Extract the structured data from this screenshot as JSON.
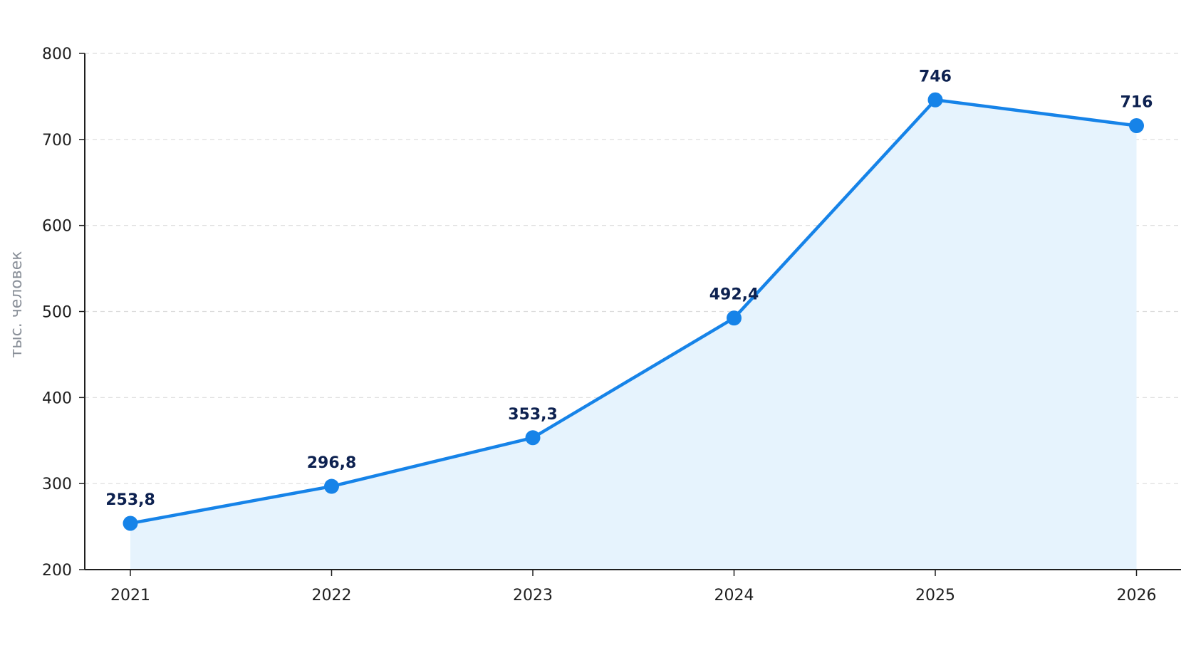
{
  "chart_data": {
    "type": "area",
    "categories": [
      "2021",
      "2022",
      "2023",
      "2024",
      "2025",
      "2026"
    ],
    "values": [
      253.8,
      296.8,
      353.3,
      492.4,
      746,
      716
    ],
    "data_labels": [
      "253,8",
      "296,8",
      "353,3",
      "492,4",
      "746",
      "716"
    ],
    "ylabel": "тыс. человек",
    "ylim": [
      200,
      800
    ],
    "yticks": [
      200,
      300,
      400,
      500,
      600,
      700,
      800
    ],
    "ytick_labels": [
      "200",
      "300",
      "400",
      "500",
      "600",
      "700",
      "800"
    ],
    "grid": true,
    "colors": {
      "line": "#1683e8",
      "marker": "#1683e8",
      "fill": "#e6f3fd",
      "grid": "#dcdcdc",
      "axis": "#1f1f1f",
      "data_label": "#0d2150",
      "ylabel": "#8a9099"
    }
  }
}
